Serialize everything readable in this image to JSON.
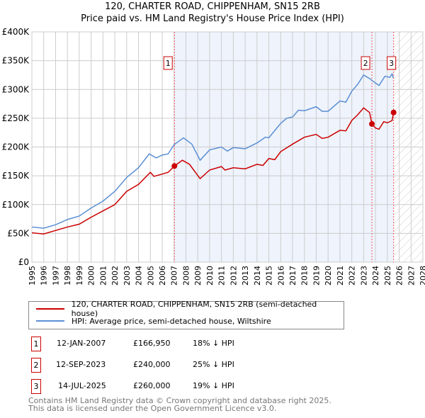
{
  "chart_data": {
    "type": "line",
    "title": "120, CHARTER ROAD, CHIPPENHAM, SN15 2RB",
    "subtitle": "Price paid vs. HM Land Registry's House Price Index (HPI)",
    "xlim": [
      1995,
      2028
    ],
    "ylim": [
      0,
      400000
    ],
    "x_ticks": [
      "1995",
      "1996",
      "1997",
      "1998",
      "1999",
      "2000",
      "2001",
      "2002",
      "2003",
      "2004",
      "2005",
      "2006",
      "2007",
      "2008",
      "2009",
      "2010",
      "2011",
      "2012",
      "2013",
      "2014",
      "2015",
      "2016",
      "2017",
      "2018",
      "2019",
      "2020",
      "2021",
      "2022",
      "2023",
      "2024",
      "2025",
      "2026",
      "2027",
      "2028"
    ],
    "y_ticks": [
      {
        "v": 0,
        "l": "£0"
      },
      {
        "v": 50000,
        "l": "£50K"
      },
      {
        "v": 100000,
        "l": "£100K"
      },
      {
        "v": 150000,
        "l": "£150K"
      },
      {
        "v": 200000,
        "l": "£200K"
      },
      {
        "v": 250000,
        "l": "£250K"
      },
      {
        "v": 300000,
        "l": "£300K"
      },
      {
        "v": 350000,
        "l": "£350K"
      },
      {
        "v": 400000,
        "l": "£400K"
      }
    ],
    "grid": true,
    "series": [
      {
        "name": "120, CHARTER ROAD, CHIPPENHAM, SN15 2RB (semi-detached house)",
        "color": "#cc0000",
        "points": [
          [
            1995,
            51
          ],
          [
            1996,
            49
          ],
          [
            1997,
            55
          ],
          [
            1998,
            61
          ],
          [
            1999,
            66
          ],
          [
            2000,
            78
          ],
          [
            2001,
            89
          ],
          [
            2002,
            100
          ],
          [
            2003,
            123
          ],
          [
            2004,
            135
          ],
          [
            2005,
            156
          ],
          [
            2005.3,
            149
          ],
          [
            2006,
            153
          ],
          [
            2006.5,
            156
          ],
          [
            2007.03,
            166.95
          ],
          [
            2007.7,
            177
          ],
          [
            2008.3,
            170
          ],
          [
            2009.2,
            145
          ],
          [
            2010,
            160
          ],
          [
            2011,
            166
          ],
          [
            2011.3,
            160
          ],
          [
            2012,
            164
          ],
          [
            2013,
            162
          ],
          [
            2014,
            170
          ],
          [
            2014.5,
            168
          ],
          [
            2015,
            180
          ],
          [
            2015.5,
            178
          ],
          [
            2016,
            192
          ],
          [
            2017,
            205
          ],
          [
            2018,
            217
          ],
          [
            2019,
            222
          ],
          [
            2019.5,
            215
          ],
          [
            2020,
            217
          ],
          [
            2021,
            229
          ],
          [
            2021.5,
            228
          ],
          [
            2022,
            246
          ],
          [
            2022.5,
            256
          ],
          [
            2023,
            268
          ],
          [
            2023.5,
            260
          ],
          [
            2023.7,
            240
          ],
          [
            2024,
            233
          ],
          [
            2024.3,
            231
          ],
          [
            2024.7,
            244
          ],
          [
            2025,
            242
          ],
          [
            2025.4,
            246
          ],
          [
            2025.53,
            260
          ]
        ]
      },
      {
        "name": "HPI: Average price, semi-detached house, Wiltshire",
        "color": "#5b8fd4",
        "points": [
          [
            1995,
            61
          ],
          [
            1996,
            59
          ],
          [
            1997,
            65
          ],
          [
            1998,
            74
          ],
          [
            1999,
            80
          ],
          [
            2000,
            94
          ],
          [
            2001,
            106
          ],
          [
            2002,
            123
          ],
          [
            2003,
            147
          ],
          [
            2004,
            164
          ],
          [
            2004.9,
            188
          ],
          [
            2005.5,
            181
          ],
          [
            2006,
            186
          ],
          [
            2006.5,
            188
          ],
          [
            2007,
            204
          ],
          [
            2007.8,
            216
          ],
          [
            2008.5,
            205
          ],
          [
            2009.2,
            177
          ],
          [
            2010,
            195
          ],
          [
            2011,
            200
          ],
          [
            2011.5,
            193
          ],
          [
            2012,
            199
          ],
          [
            2013,
            197
          ],
          [
            2014,
            207
          ],
          [
            2014.7,
            217
          ],
          [
            2015,
            216
          ],
          [
            2016,
            241
          ],
          [
            2016.5,
            250
          ],
          [
            2017,
            252
          ],
          [
            2017.5,
            264
          ],
          [
            2018,
            263
          ],
          [
            2019,
            270
          ],
          [
            2019.5,
            262
          ],
          [
            2020,
            262
          ],
          [
            2021,
            280
          ],
          [
            2021.5,
            278
          ],
          [
            2022,
            297
          ],
          [
            2022.5,
            309
          ],
          [
            2023,
            325
          ],
          [
            2023.5,
            319
          ],
          [
            2024,
            311
          ],
          [
            2024.3,
            307
          ],
          [
            2024.8,
            323
          ],
          [
            2025.2,
            321
          ],
          [
            2025.4,
            327
          ],
          [
            2025.5,
            320
          ]
        ]
      }
    ],
    "sales": [
      {
        "n": "1",
        "x": 2007.03,
        "y": 166950
      },
      {
        "n": "2",
        "x": 2023.7,
        "y": 240000
      },
      {
        "n": "3",
        "x": 2025.53,
        "y": 260000
      }
    ],
    "shaded_range": [
      2007.03,
      2025.53
    ],
    "forecast_hatch_from": 2025.53
  },
  "legend": {
    "items": [
      {
        "label": "120, CHARTER ROAD, CHIPPENHAM, SN15 2RB (semi-detached house)",
        "color": "#cc0000"
      },
      {
        "label": "HPI: Average price, semi-detached house, Wiltshire",
        "color": "#5b8fd4"
      }
    ]
  },
  "transactions": [
    {
      "n": "1",
      "date": "12-JAN-2007",
      "price": "£166,950",
      "hpi": "18% ↓ HPI"
    },
    {
      "n": "2",
      "date": "12-SEP-2023",
      "price": "£240,000",
      "hpi": "25% ↓ HPI"
    },
    {
      "n": "3",
      "date": "14-JUL-2025",
      "price": "£260,000",
      "hpi": "19% ↓ HPI"
    }
  ],
  "footer": {
    "line1": "Contains HM Land Registry data © Crown copyright and database right 2025.",
    "line2": "This data is licensed under the Open Government Licence v3.0."
  }
}
